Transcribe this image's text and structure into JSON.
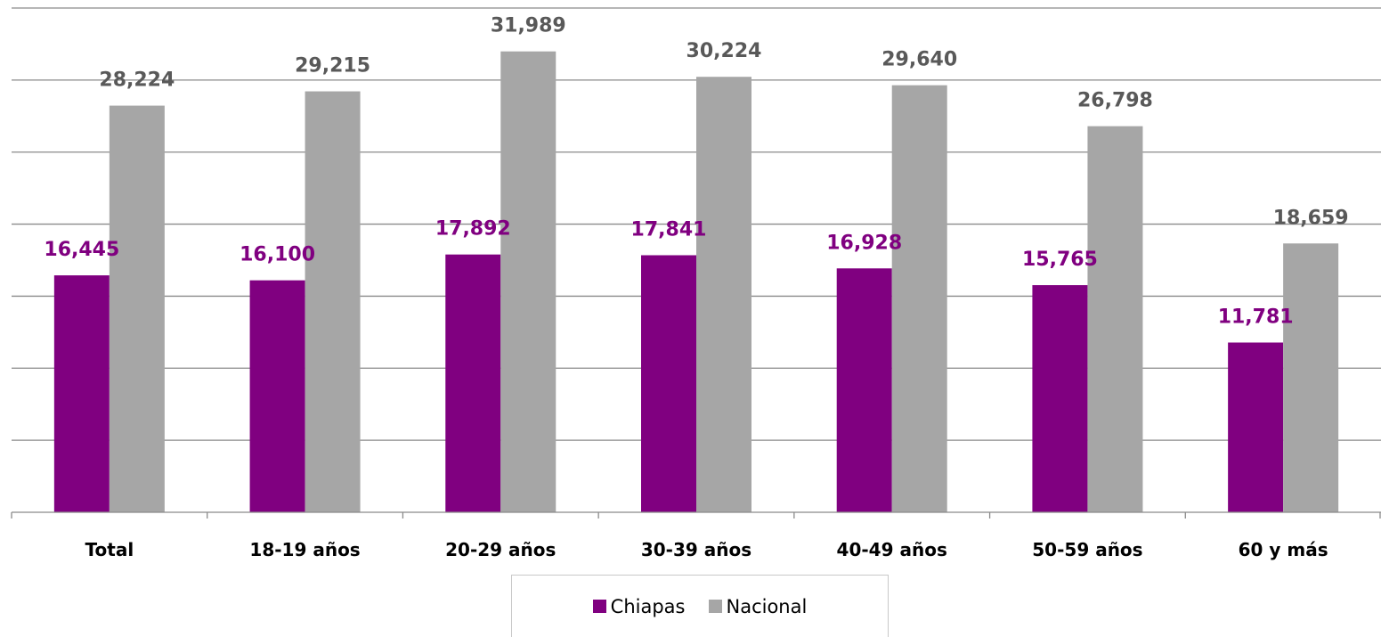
{
  "chart_data": {
    "type": "bar",
    "title": "",
    "xlabel": "",
    "ylabel": "",
    "categories": [
      "Total",
      "18-19 años",
      "20-29 años",
      "30-39 años",
      "40-49 años",
      "50-59 años",
      "60 y más"
    ],
    "series": [
      {
        "name": "Chiapas",
        "color": "#800080",
        "values": [
          16445,
          16100,
          17892,
          17841,
          16928,
          15765,
          11781
        ],
        "labels": [
          "16,445",
          "16,100",
          "17,892",
          "17,841",
          "16,928",
          "15,765",
          "11,781"
        ]
      },
      {
        "name": "Nacional",
        "color": "#a6a6a6",
        "values": [
          28224,
          29215,
          31989,
          30224,
          29640,
          26798,
          18659
        ],
        "labels": [
          "28,224",
          "29,215",
          "31,989",
          "30,224",
          "29,640",
          "26,798",
          "18,659"
        ]
      }
    ],
    "ylim": [
      0,
      35000
    ],
    "grid": true,
    "legend": "bottom-center"
  }
}
